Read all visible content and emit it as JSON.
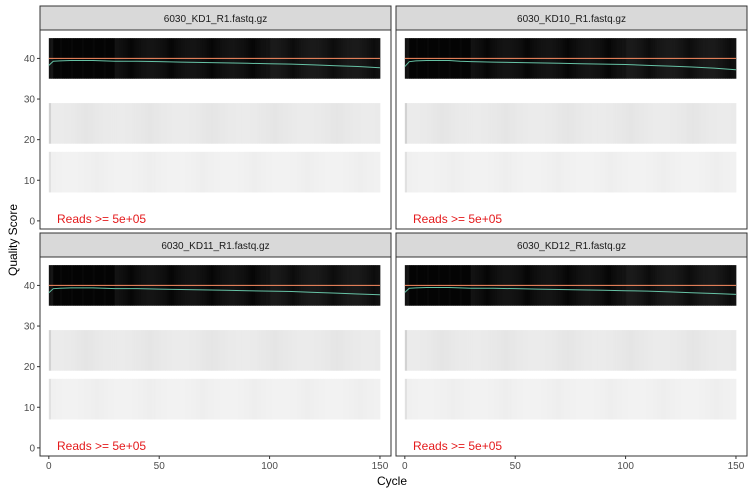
{
  "chart_data": {
    "type": "heatmap",
    "xlabel": "Cycle",
    "ylabel": "Quality Score",
    "xlim": [
      -4,
      155
    ],
    "ylim": [
      -2,
      47
    ],
    "x_ticks": [
      "0",
      "50",
      "100",
      "150"
    ],
    "x_tick_values": [
      0,
      50,
      100,
      150
    ],
    "y_ticks": [
      "0",
      "10",
      "20",
      "30",
      "40"
    ],
    "y_tick_values": [
      0,
      10,
      20,
      30,
      40
    ],
    "grid": false,
    "colors": {
      "strip_bg": "#d9d9d9",
      "panel_border": "#333333",
      "mean_line": "#66c2a5",
      "max_line": "#fc8d62",
      "annotation": "#e41a1c"
    },
    "panels": [
      {
        "title": "6030_KD1_R1.fastq.gz",
        "annotation": "Reads >=  5e+05",
        "mean_quality": {
          "x": [
            0,
            2,
            5,
            10,
            20,
            25,
            30,
            40,
            50,
            60,
            70,
            80,
            90,
            100,
            110,
            120,
            130,
            140,
            150
          ],
          "y": [
            38.3,
            39.3,
            39.4,
            39.5,
            39.5,
            39.4,
            39.3,
            39.3,
            39.2,
            39.1,
            39.0,
            38.9,
            38.8,
            38.7,
            38.6,
            38.4,
            38.2,
            38.0,
            37.7
          ]
        },
        "max_quality": {
          "x": [
            0,
            150
          ],
          "y": [
            40,
            40
          ]
        },
        "bands": [
          {
            "from": 35,
            "to": 45
          },
          {
            "from": 19,
            "to": 29
          },
          {
            "from": 7,
            "to": 17
          }
        ]
      },
      {
        "title": "6030_KD10_R1.fastq.gz",
        "annotation": "Reads >=  5e+05",
        "mean_quality": {
          "x": [
            0,
            2,
            5,
            10,
            20,
            25,
            30,
            40,
            50,
            60,
            70,
            80,
            90,
            100,
            110,
            120,
            130,
            140,
            150
          ],
          "y": [
            38.0,
            39.2,
            39.4,
            39.5,
            39.5,
            39.3,
            39.2,
            39.1,
            39.0,
            38.9,
            38.8,
            38.7,
            38.6,
            38.5,
            38.3,
            38.1,
            37.9,
            37.6,
            37.2
          ]
        },
        "max_quality": {
          "x": [
            0,
            150
          ],
          "y": [
            40,
            40
          ]
        },
        "bands": [
          {
            "from": 35,
            "to": 45
          },
          {
            "from": 19,
            "to": 29
          },
          {
            "from": 7,
            "to": 17
          }
        ]
      },
      {
        "title": "6030_KD11_R1.fastq.gz",
        "annotation": "Reads >=  5e+05",
        "mean_quality": {
          "x": [
            0,
            2,
            5,
            10,
            20,
            25,
            30,
            40,
            50,
            60,
            70,
            80,
            90,
            100,
            110,
            120,
            130,
            140,
            150
          ],
          "y": [
            38.2,
            39.2,
            39.3,
            39.4,
            39.4,
            39.3,
            39.2,
            39.2,
            39.1,
            39.0,
            38.9,
            38.8,
            38.7,
            38.6,
            38.5,
            38.3,
            38.1,
            37.9,
            37.7
          ]
        },
        "max_quality": {
          "x": [
            0,
            150
          ],
          "y": [
            40,
            40
          ]
        },
        "bands": [
          {
            "from": 35,
            "to": 45
          },
          {
            "from": 19,
            "to": 29
          },
          {
            "from": 7,
            "to": 17
          }
        ]
      },
      {
        "title": "6030_KD12_R1.fastq.gz",
        "annotation": "Reads >=  5e+05",
        "mean_quality": {
          "x": [
            0,
            2,
            5,
            10,
            20,
            25,
            30,
            40,
            50,
            60,
            70,
            80,
            90,
            100,
            110,
            120,
            130,
            140,
            150
          ],
          "y": [
            38.3,
            39.3,
            39.4,
            39.5,
            39.5,
            39.4,
            39.3,
            39.3,
            39.2,
            39.1,
            39.0,
            38.9,
            38.8,
            38.7,
            38.6,
            38.4,
            38.2,
            38.0,
            37.8
          ]
        },
        "max_quality": {
          "x": [
            0,
            150
          ],
          "y": [
            40,
            40
          ]
        },
        "bands": [
          {
            "from": 35,
            "to": 45
          },
          {
            "from": 19,
            "to": 29
          },
          {
            "from": 7,
            "to": 17
          }
        ]
      }
    ]
  }
}
